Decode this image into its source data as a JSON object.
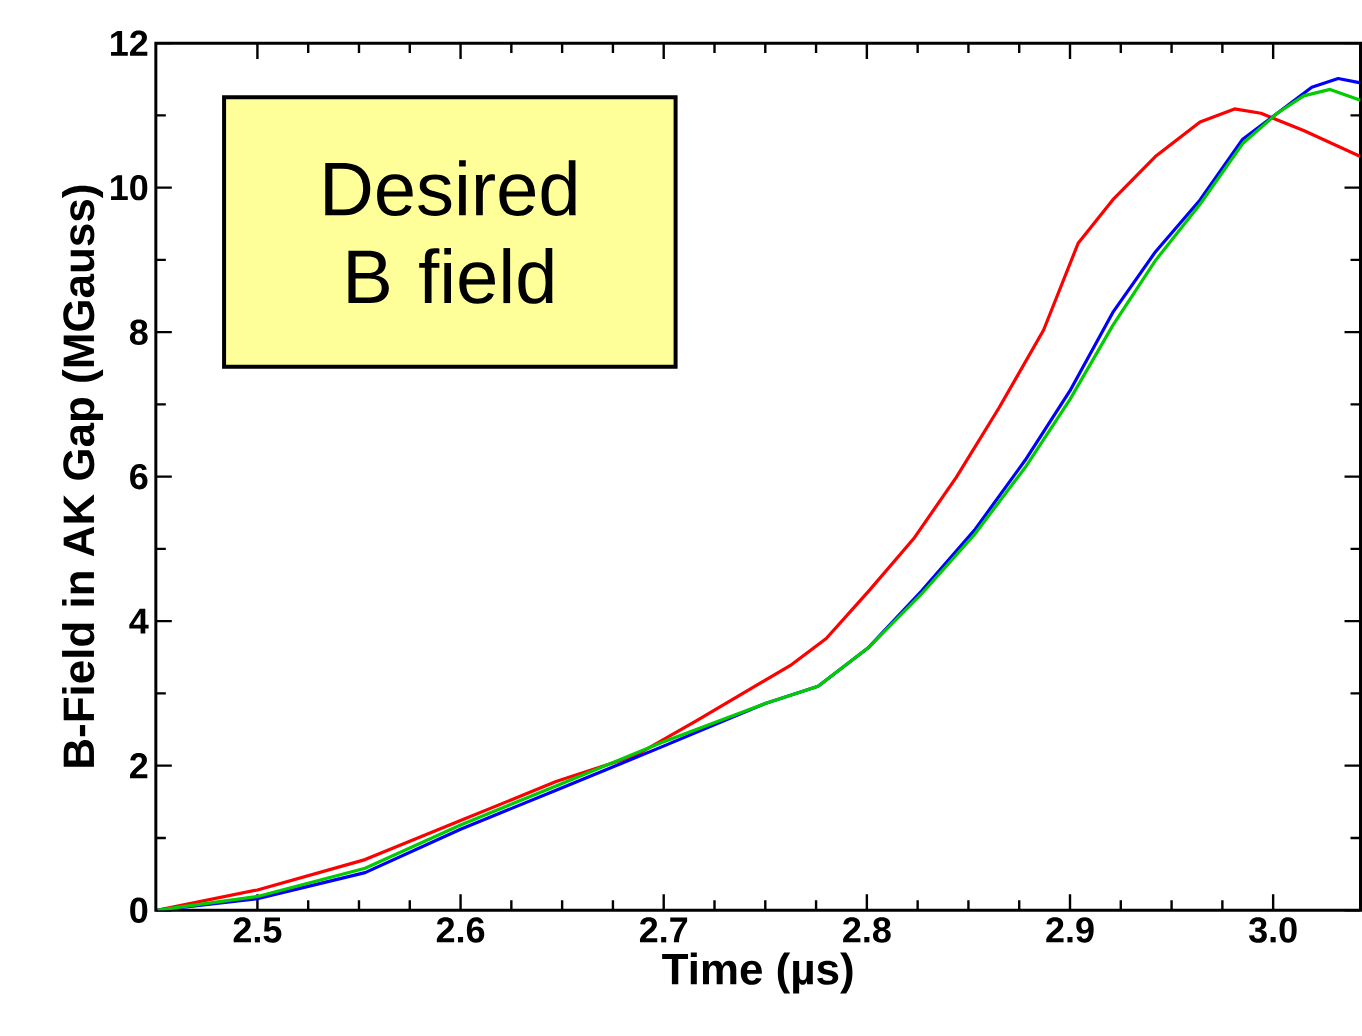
{
  "chart_data": {
    "type": "line",
    "xlabel": "Time (µs)",
    "ylabel": "B-Field in AK Gap (MGauss)",
    "annotations": [
      "Desired B field"
    ],
    "xlim": [
      2.45,
      3.043
    ],
    "ylim": [
      0,
      12
    ],
    "xticks": [
      2.5,
      2.6,
      2.7,
      2.8,
      2.9,
      {
        "value": 3.0,
        "label": "3.0"
      }
    ],
    "yticks": [
      0,
      2,
      4,
      6,
      8,
      10,
      12
    ],
    "grid": false,
    "marker": "none",
    "line_style": "solid",
    "series": [
      {
        "color": "#ff0000",
        "x": [
          2.451,
          2.5,
          2.553,
          2.6,
          2.647,
          2.686,
          2.716,
          2.763,
          2.78,
          2.801,
          2.823,
          2.844,
          2.865,
          2.887,
          2.904,
          2.921,
          2.942,
          2.964,
          2.981,
          2.994,
          3.015,
          3.043
        ],
        "values": [
          0,
          0.28,
          0.7,
          1.24,
          1.78,
          2.14,
          2.62,
          3.4,
          3.76,
          4.42,
          5.14,
          5.99,
          6.95,
          8.03,
          9.23,
          9.83,
          10.43,
          10.91,
          11.09,
          11.03,
          10.79,
          10.43
        ]
      },
      {
        "color": "#0000ff",
        "x": [
          2.451,
          2.5,
          2.553,
          2.6,
          2.647,
          2.699,
          2.75,
          2.776,
          2.801,
          2.827,
          2.853,
          2.878,
          2.9,
          2.921,
          2.942,
          2.964,
          2.985,
          3.002,
          3.019,
          3.032,
          3.043
        ],
        "values": [
          0,
          0.16,
          0.52,
          1.12,
          1.66,
          2.26,
          2.86,
          3.1,
          3.64,
          4.42,
          5.26,
          6.23,
          7.19,
          8.27,
          9.11,
          9.83,
          10.67,
          11.03,
          11.39,
          11.51,
          11.45
        ]
      },
      {
        "color": "#00cc00",
        "x": [
          2.451,
          2.5,
          2.553,
          2.6,
          2.647,
          2.699,
          2.75,
          2.776,
          2.801,
          2.827,
          2.853,
          2.878,
          2.9,
          2.921,
          2.942,
          2.964,
          2.985,
          3.002,
          3.015,
          3.028,
          3.043
        ],
        "values": [
          0,
          0.19,
          0.58,
          1.18,
          1.72,
          2.32,
          2.86,
          3.1,
          3.64,
          4.38,
          5.2,
          6.13,
          7.07,
          8.09,
          8.99,
          9.77,
          10.61,
          11.03,
          11.27,
          11.36,
          11.21
        ]
      }
    ]
  }
}
